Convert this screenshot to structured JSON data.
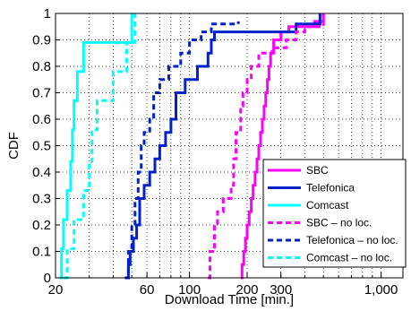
{
  "chart_data": {
    "type": "line",
    "title": "",
    "xlabel": "Download Time [min.]",
    "ylabel": "CDF",
    "xscale": "log",
    "xlim": [
      20,
      1300
    ],
    "ylim": [
      0,
      1
    ],
    "grid": true,
    "legend_position": "bottom-right",
    "x_ticks": [
      {
        "value": 20,
        "label": "20"
      },
      {
        "value": 60,
        "label": "60"
      },
      {
        "value": 100,
        "label": "100"
      },
      {
        "value": 200,
        "label": "200"
      },
      {
        "value": 300,
        "label": "300"
      },
      {
        "value": 1000,
        "label": "1,000"
      }
    ],
    "y_ticks": [
      {
        "value": 0,
        "label": "0"
      },
      {
        "value": 0.1,
        "label": "0.1"
      },
      {
        "value": 0.2,
        "label": "0.2"
      },
      {
        "value": 0.3,
        "label": "0.3"
      },
      {
        "value": 0.4,
        "label": "0.4"
      },
      {
        "value": 0.5,
        "label": "0.5"
      },
      {
        "value": 0.6,
        "label": "0.6"
      },
      {
        "value": 0.7,
        "label": "0.7"
      },
      {
        "value": 0.8,
        "label": "0.8"
      },
      {
        "value": 0.9,
        "label": "0.9"
      },
      {
        "value": 1,
        "label": "1"
      }
    ],
    "series": [
      {
        "name": "SBC",
        "color": "#ff00ff",
        "dash": "solid",
        "points": [
          [
            185,
            0
          ],
          [
            188,
            0.05
          ],
          [
            192,
            0.1
          ],
          [
            196,
            0.15
          ],
          [
            200,
            0.2
          ],
          [
            205,
            0.25
          ],
          [
            210,
            0.3
          ],
          [
            215,
            0.35
          ],
          [
            220,
            0.4
          ],
          [
            225,
            0.45
          ],
          [
            230,
            0.5
          ],
          [
            235,
            0.55
          ],
          [
            240,
            0.6
          ],
          [
            245,
            0.65
          ],
          [
            250,
            0.7
          ],
          [
            255,
            0.75
          ],
          [
            260,
            0.8
          ],
          [
            265,
            0.85
          ],
          [
            275,
            0.9
          ],
          [
            300,
            0.93
          ],
          [
            330,
            0.95
          ],
          [
            450,
            0.97
          ],
          [
            500,
            1
          ]
        ]
      },
      {
        "name": "Telefonica",
        "color": "#0022cc",
        "dash": "solid",
        "points": [
          [
            47,
            0
          ],
          [
            48,
            0.05
          ],
          [
            49,
            0.1
          ],
          [
            51,
            0.15
          ],
          [
            53,
            0.2
          ],
          [
            55,
            0.3
          ],
          [
            58,
            0.35
          ],
          [
            62,
            0.4
          ],
          [
            66,
            0.45
          ],
          [
            70,
            0.5
          ],
          [
            75,
            0.55
          ],
          [
            80,
            0.6
          ],
          [
            85,
            0.7
          ],
          [
            95,
            0.75
          ],
          [
            110,
            0.8
          ],
          [
            125,
            0.85
          ],
          [
            130,
            0.9
          ],
          [
            135,
            0.93
          ],
          [
            320,
            0.93
          ],
          [
            360,
            0.96
          ],
          [
            480,
            1
          ]
        ]
      },
      {
        "name": "Comcast",
        "color": "#00ffff",
        "dash": "solid",
        "points": [
          [
            21,
            0
          ],
          [
            21.5,
            0.11
          ],
          [
            22,
            0.22
          ],
          [
            23,
            0.33
          ],
          [
            24,
            0.44
          ],
          [
            24.5,
            0.56
          ],
          [
            25,
            0.67
          ],
          [
            26,
            0.78
          ],
          [
            28,
            0.89
          ],
          [
            46,
            0.89
          ],
          [
            50,
            1
          ]
        ]
      },
      {
        "name": "SBC – no loc.",
        "color": "#ff00ff",
        "dash": "dash",
        "points": [
          [
            125,
            0
          ],
          [
            128,
            0.1
          ],
          [
            135,
            0.2
          ],
          [
            140,
            0.25
          ],
          [
            150,
            0.3
          ],
          [
            165,
            0.35
          ],
          [
            170,
            0.45
          ],
          [
            175,
            0.55
          ],
          [
            185,
            0.65
          ],
          [
            190,
            0.7
          ],
          [
            200,
            0.75
          ],
          [
            210,
            0.8
          ],
          [
            230,
            0.85
          ],
          [
            270,
            0.87
          ],
          [
            320,
            0.9
          ],
          [
            360,
            0.93
          ],
          [
            400,
            0.95
          ],
          [
            500,
            1
          ]
        ]
      },
      {
        "name": "Telefonica – no loc.",
        "color": "#0022cc",
        "dash": "dash",
        "points": [
          [
            46,
            0
          ],
          [
            48,
            0.1
          ],
          [
            50,
            0.2
          ],
          [
            52,
            0.3
          ],
          [
            54,
            0.4
          ],
          [
            56,
            0.5
          ],
          [
            58,
            0.55
          ],
          [
            62,
            0.6
          ],
          [
            65,
            0.7
          ],
          [
            70,
            0.75
          ],
          [
            78,
            0.8
          ],
          [
            90,
            0.85
          ],
          [
            100,
            0.9
          ],
          [
            115,
            0.93
          ],
          [
            130,
            0.96
          ],
          [
            175,
            0.96
          ],
          [
            180,
            0.97
          ]
        ]
      },
      {
        "name": "Comcast – no loc.",
        "color": "#00ffff",
        "dash": "dash",
        "points": [
          [
            22,
            0
          ],
          [
            23,
            0.11
          ],
          [
            25,
            0.22
          ],
          [
            28,
            0.33
          ],
          [
            30,
            0.44
          ],
          [
            31,
            0.56
          ],
          [
            33,
            0.67
          ],
          [
            40,
            0.78
          ],
          [
            47,
            0.89
          ],
          [
            52,
            1
          ]
        ]
      }
    ]
  }
}
